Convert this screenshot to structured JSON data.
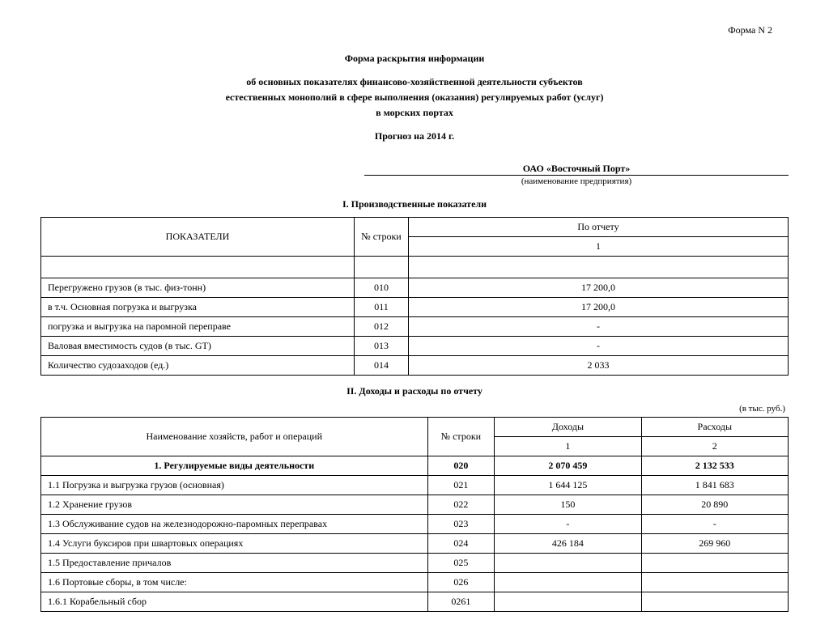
{
  "form_number": "Форма N 2",
  "title1": "Форма раскрытия информации",
  "title2": "об основных показателях финансово-хозяйственной деятельности субъектов",
  "title3": "естественных монополий в сфере выполнения (оказания) регулируемых работ (услуг)",
  "title4": "в морских портах",
  "forecast": "Прогноз на 2014 г.",
  "company_name": "ОАО «Восточный Порт»",
  "company_label": "(наименование предприятия)",
  "section1_title": "I. Производственные показатели",
  "section2_title": "II. Доходы и расходы по отчету",
  "units_note": "(в тыс. руб.)",
  "table1": {
    "header_indicator": "ПОКАЗАТЕЛИ",
    "header_line": "№ строки",
    "header_report": "По отчету",
    "header_col1": "1",
    "rows": [
      {
        "name": "Перегружено грузов (в тыс. физ-тонн)",
        "line": "010",
        "v1": "17 200,0"
      },
      {
        "name": "в т.ч. Основная погрузка и выгрузка",
        "line": "011",
        "v1": "17 200,0"
      },
      {
        "name": "погрузка и выгрузка на паромной переправе",
        "line": "012",
        "v1": "-"
      },
      {
        "name": "Валовая вместимость судов (в тыс. GT)",
        "line": "013",
        "v1": "-"
      },
      {
        "name": "Количество судозаходов (ед.)",
        "line": "014",
        "v1": "2 033"
      }
    ]
  },
  "table2": {
    "header_indicator": "Наименование хозяйств, работ и операций",
    "header_line": "№ строки",
    "header_income": "Доходы",
    "header_expense": "Расходы",
    "header_col1": "1",
    "header_col2": "2",
    "rows": [
      {
        "name": "1. Регулируемые виды деятельности",
        "line": "020",
        "v1": "2 070 459",
        "v2": "2 132 533",
        "bold": true,
        "center": true
      },
      {
        "name": "1.1 Погрузка и выгрузка грузов (основная)",
        "line": "021",
        "v1": "1 644 125",
        "v2": "1 841 683"
      },
      {
        "name": "1.2 Хранение грузов",
        "line": "022",
        "v1": "150",
        "v2": "20 890"
      },
      {
        "name": "1.3 Обслуживание судов на железнодорожно-паромных переправах",
        "line": "023",
        "v1": "-",
        "v2": "-"
      },
      {
        "name": "1.4 Услуги буксиров при швартовых операциях",
        "line": "024",
        "v1": "426 184",
        "v2": "269 960"
      },
      {
        "name": "1.5 Предоставление причалов",
        "line": "025",
        "v1": "",
        "v2": ""
      },
      {
        "name": "1.6 Портовые сборы, в том числе:",
        "line": "026",
        "v1": "",
        "v2": ""
      },
      {
        "name": "1.6.1 Корабельный сбор",
        "line": "0261",
        "v1": "",
        "v2": ""
      }
    ]
  }
}
